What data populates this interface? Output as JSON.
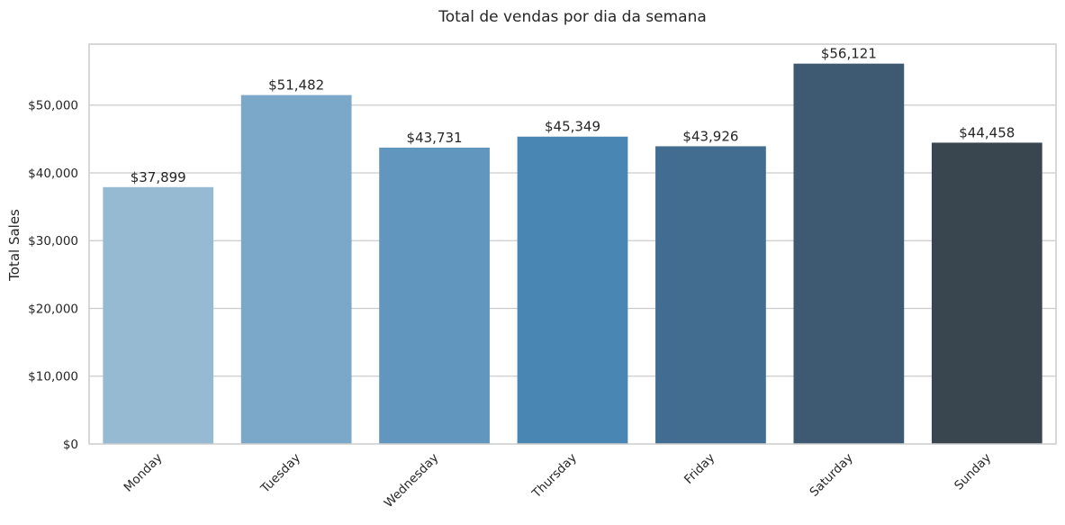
{
  "chart_data": {
    "type": "bar",
    "title": "Total de vendas por dia da semana",
    "xlabel": "",
    "ylabel": "Total Sales",
    "categories": [
      "Monday",
      "Tuesday",
      "Wednesday",
      "Thursday",
      "Friday",
      "Saturday",
      "Sunday"
    ],
    "values": [
      37899,
      51482,
      43731,
      45349,
      43926,
      56121,
      44458
    ],
    "data_labels": [
      "$37,899",
      "$51,482",
      "$43,731",
      "$45,349",
      "$43,926",
      "$56,121",
      "$44,458"
    ],
    "colors": [
      "#97bad3",
      "#7ba8c8",
      "#6197bf",
      "#4a86b4",
      "#426d91",
      "#3d5a72",
      "#39454f"
    ],
    "ylim": [
      0,
      59000
    ],
    "yticks": [
      0,
      10000,
      20000,
      30000,
      40000,
      50000
    ],
    "ytick_labels": [
      "$0",
      "$10,000",
      "$20,000",
      "$30,000",
      "$40,000",
      "$50,000"
    ],
    "grid": true,
    "xtick_rotation": 45
  }
}
